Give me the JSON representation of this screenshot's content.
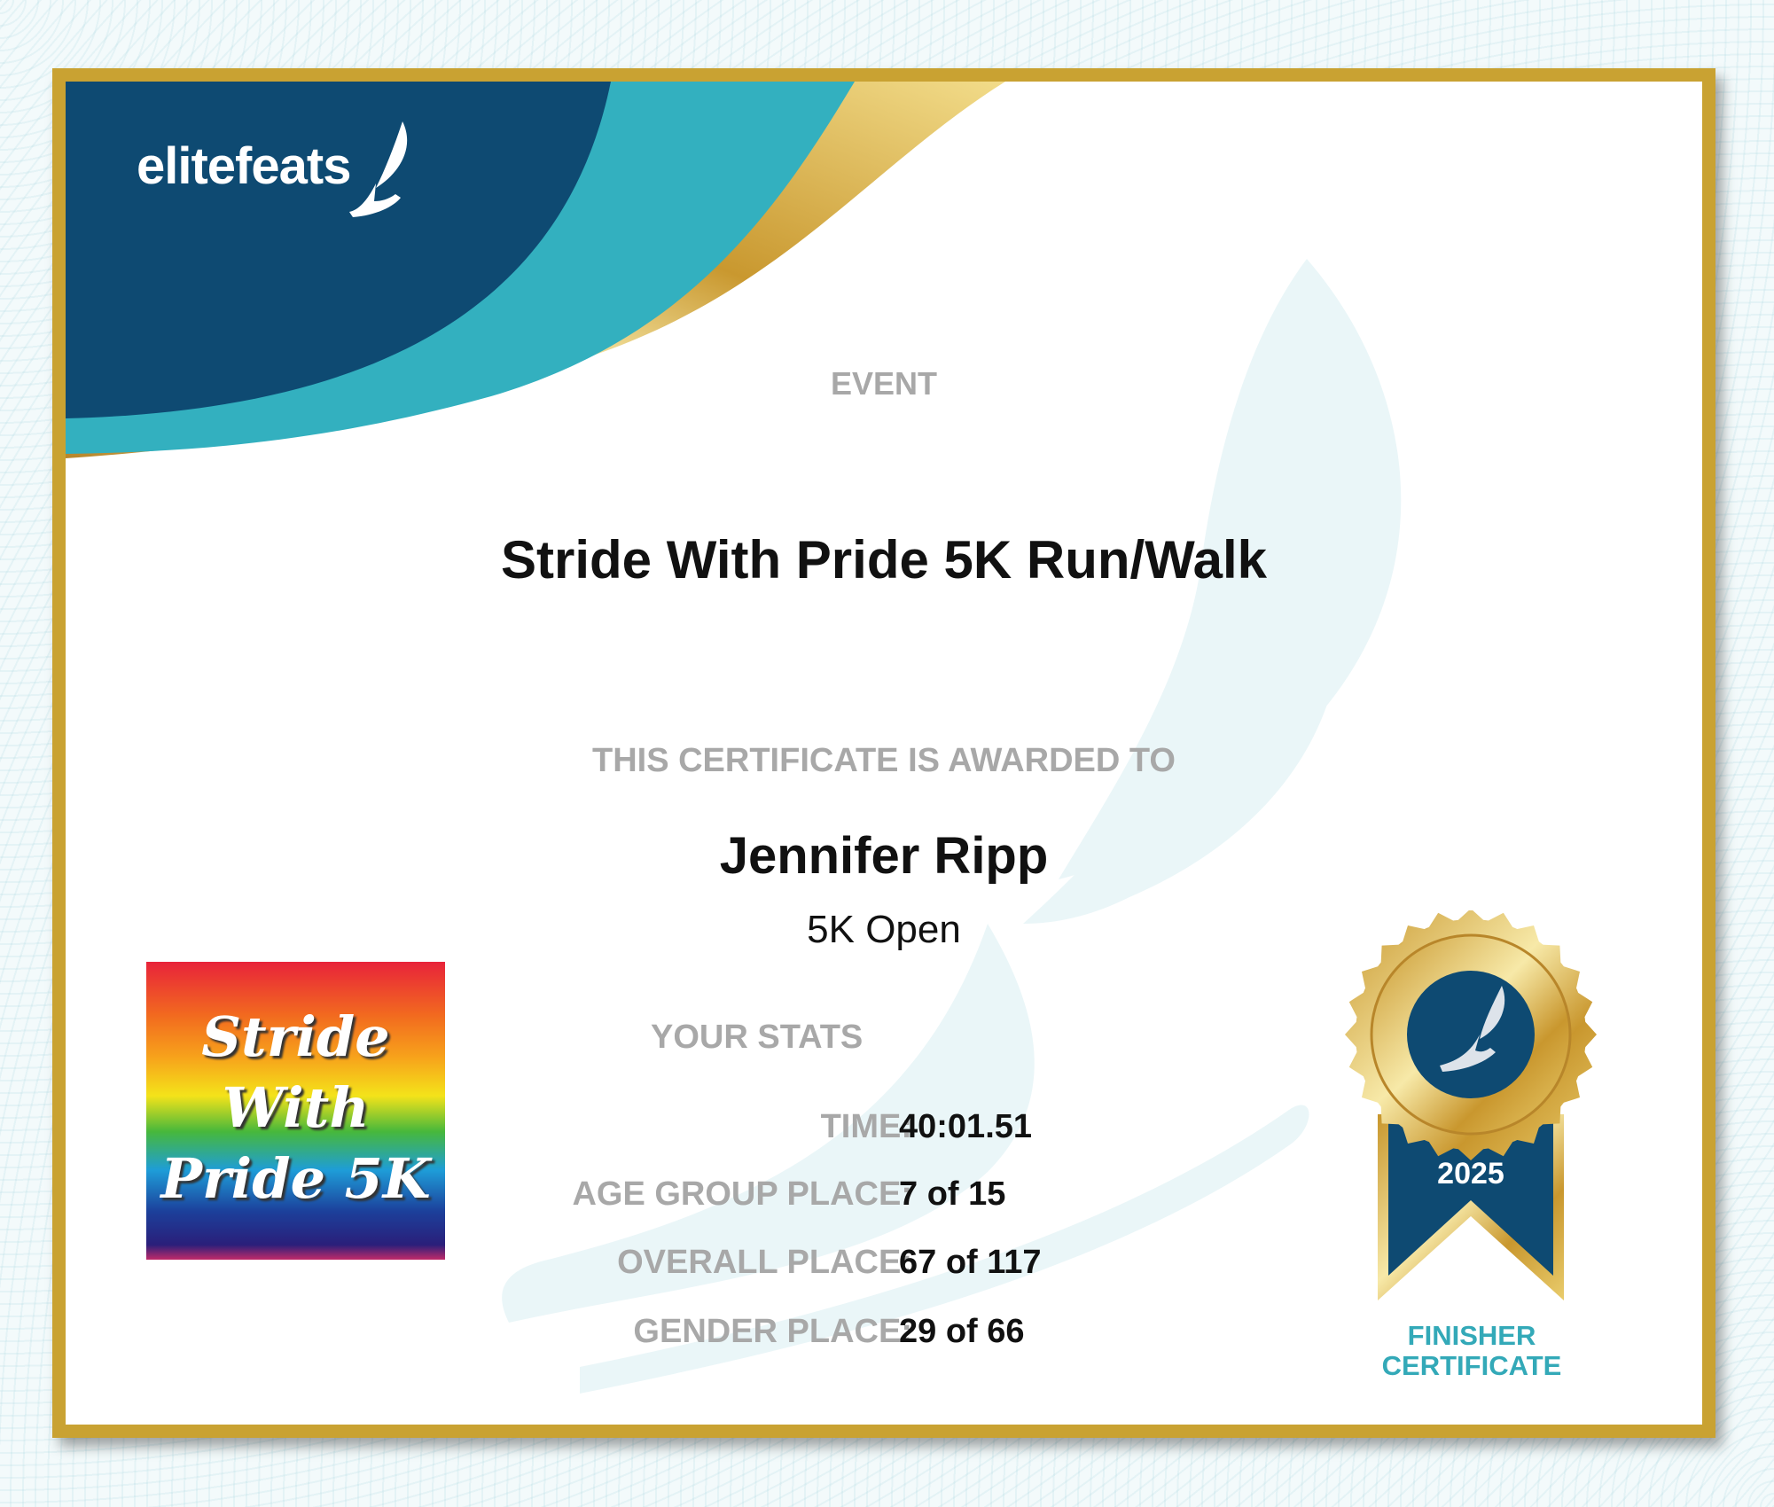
{
  "brand": {
    "logo_text": "elitefeats",
    "colors": {
      "navy": "#0e4a72",
      "teal": "#33b0bf",
      "gold": "#c9a232"
    }
  },
  "event": {
    "label": "EVENT",
    "name": "Stride With Pride 5K Run/Walk"
  },
  "award": {
    "label": "THIS CERTIFICATE IS AWARDED TO",
    "recipient": "Jennifer Ripp",
    "division": "5K Open"
  },
  "stats": {
    "label": "YOUR STATS",
    "rows": [
      {
        "key": "TIME:",
        "value": "40:01.51"
      },
      {
        "key": "AGE GROUP PLACE:",
        "value": "7 of 15"
      },
      {
        "key": "OVERALL PLACE:",
        "value": "67 of 117"
      },
      {
        "key": "GENDER PLACE:",
        "value": "29 of 66"
      }
    ]
  },
  "event_image": {
    "lines": [
      "Stride",
      "With",
      "Pride 5K"
    ]
  },
  "medal": {
    "year": "2025",
    "caption_line1": "FINISHER",
    "caption_line2": "CERTIFICATE",
    "icon": "winged-foot-icon"
  }
}
